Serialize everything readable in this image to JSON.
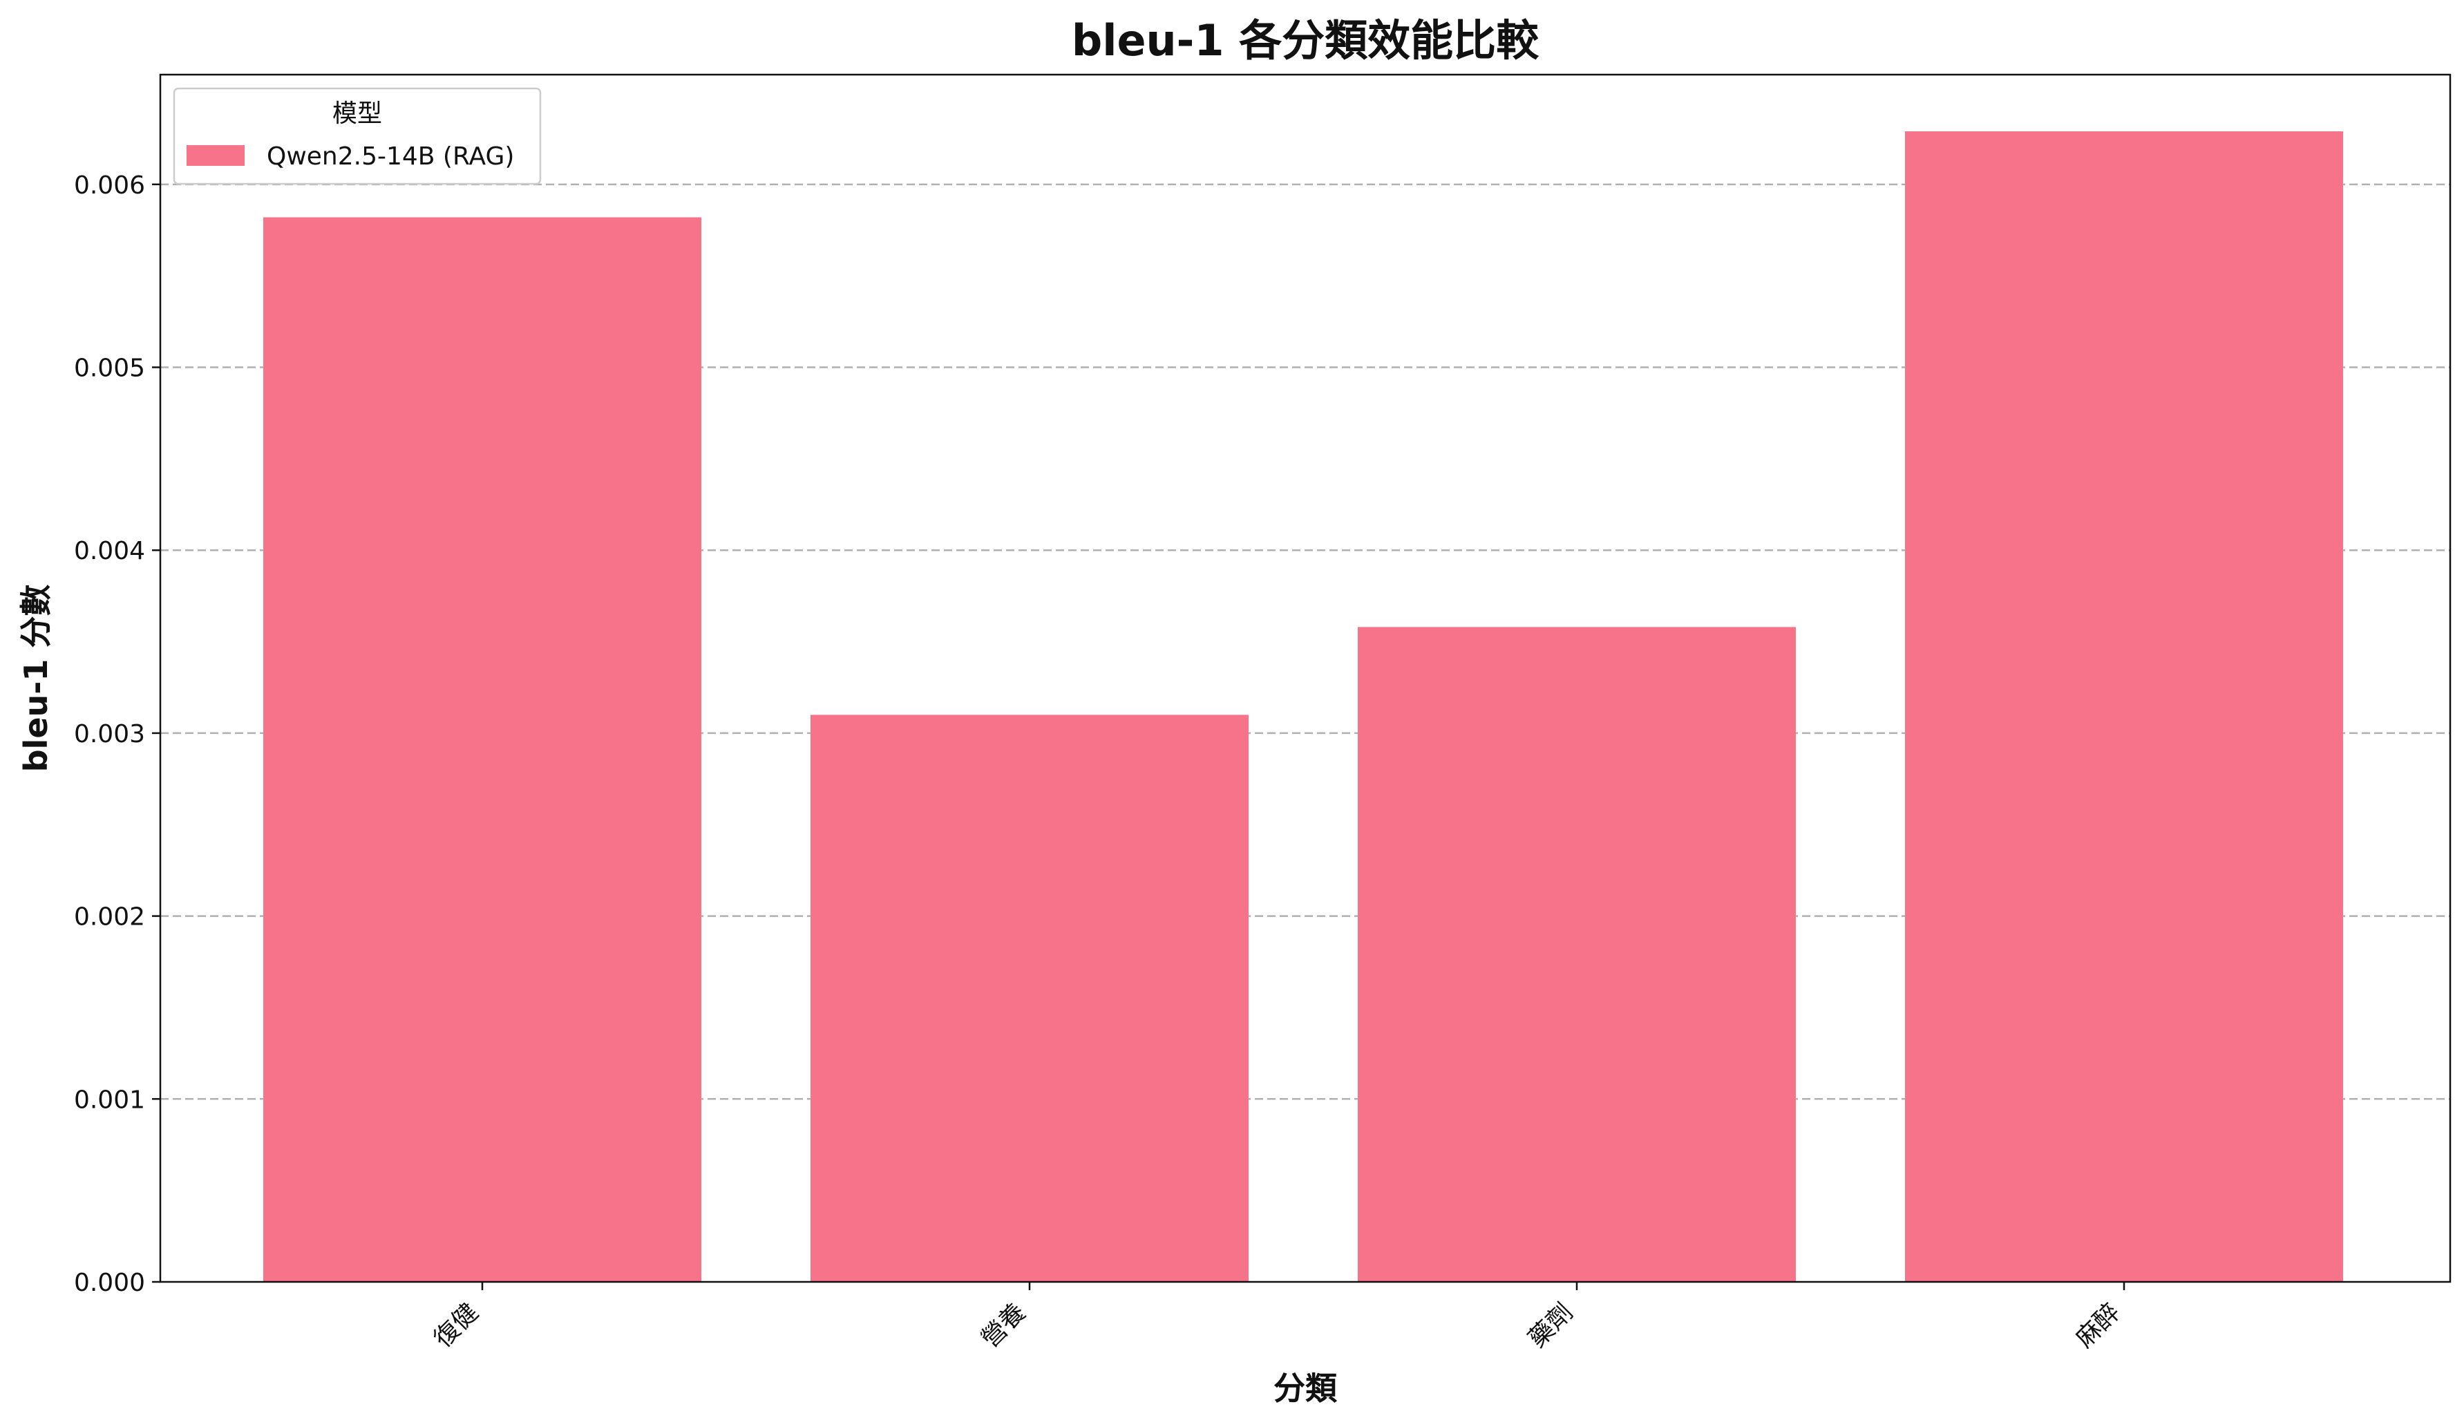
{
  "chart_data": {
    "type": "bar",
    "title": "bleu-1 各分類效能比較",
    "xlabel": "分類",
    "ylabel": "bleu-1 分數",
    "categories": [
      "復健",
      "營養",
      "藥劑",
      "麻醉"
    ],
    "series": [
      {
        "name": "Qwen2.5-14B (RAG)",
        "values": [
          0.00582,
          0.0031,
          0.00358,
          0.00629
        ],
        "color": "#f7738a"
      }
    ],
    "ylim": [
      0,
      0.0066
    ],
    "yticks": [
      "0.000",
      "0.001",
      "0.002",
      "0.003",
      "0.004",
      "0.005",
      "0.006"
    ],
    "ytick_values": [
      0,
      0.001,
      0.002,
      0.003,
      0.004,
      0.005,
      0.006
    ],
    "grid": "y-dashed",
    "legend": {
      "title": "模型",
      "placement": "top-left"
    }
  }
}
